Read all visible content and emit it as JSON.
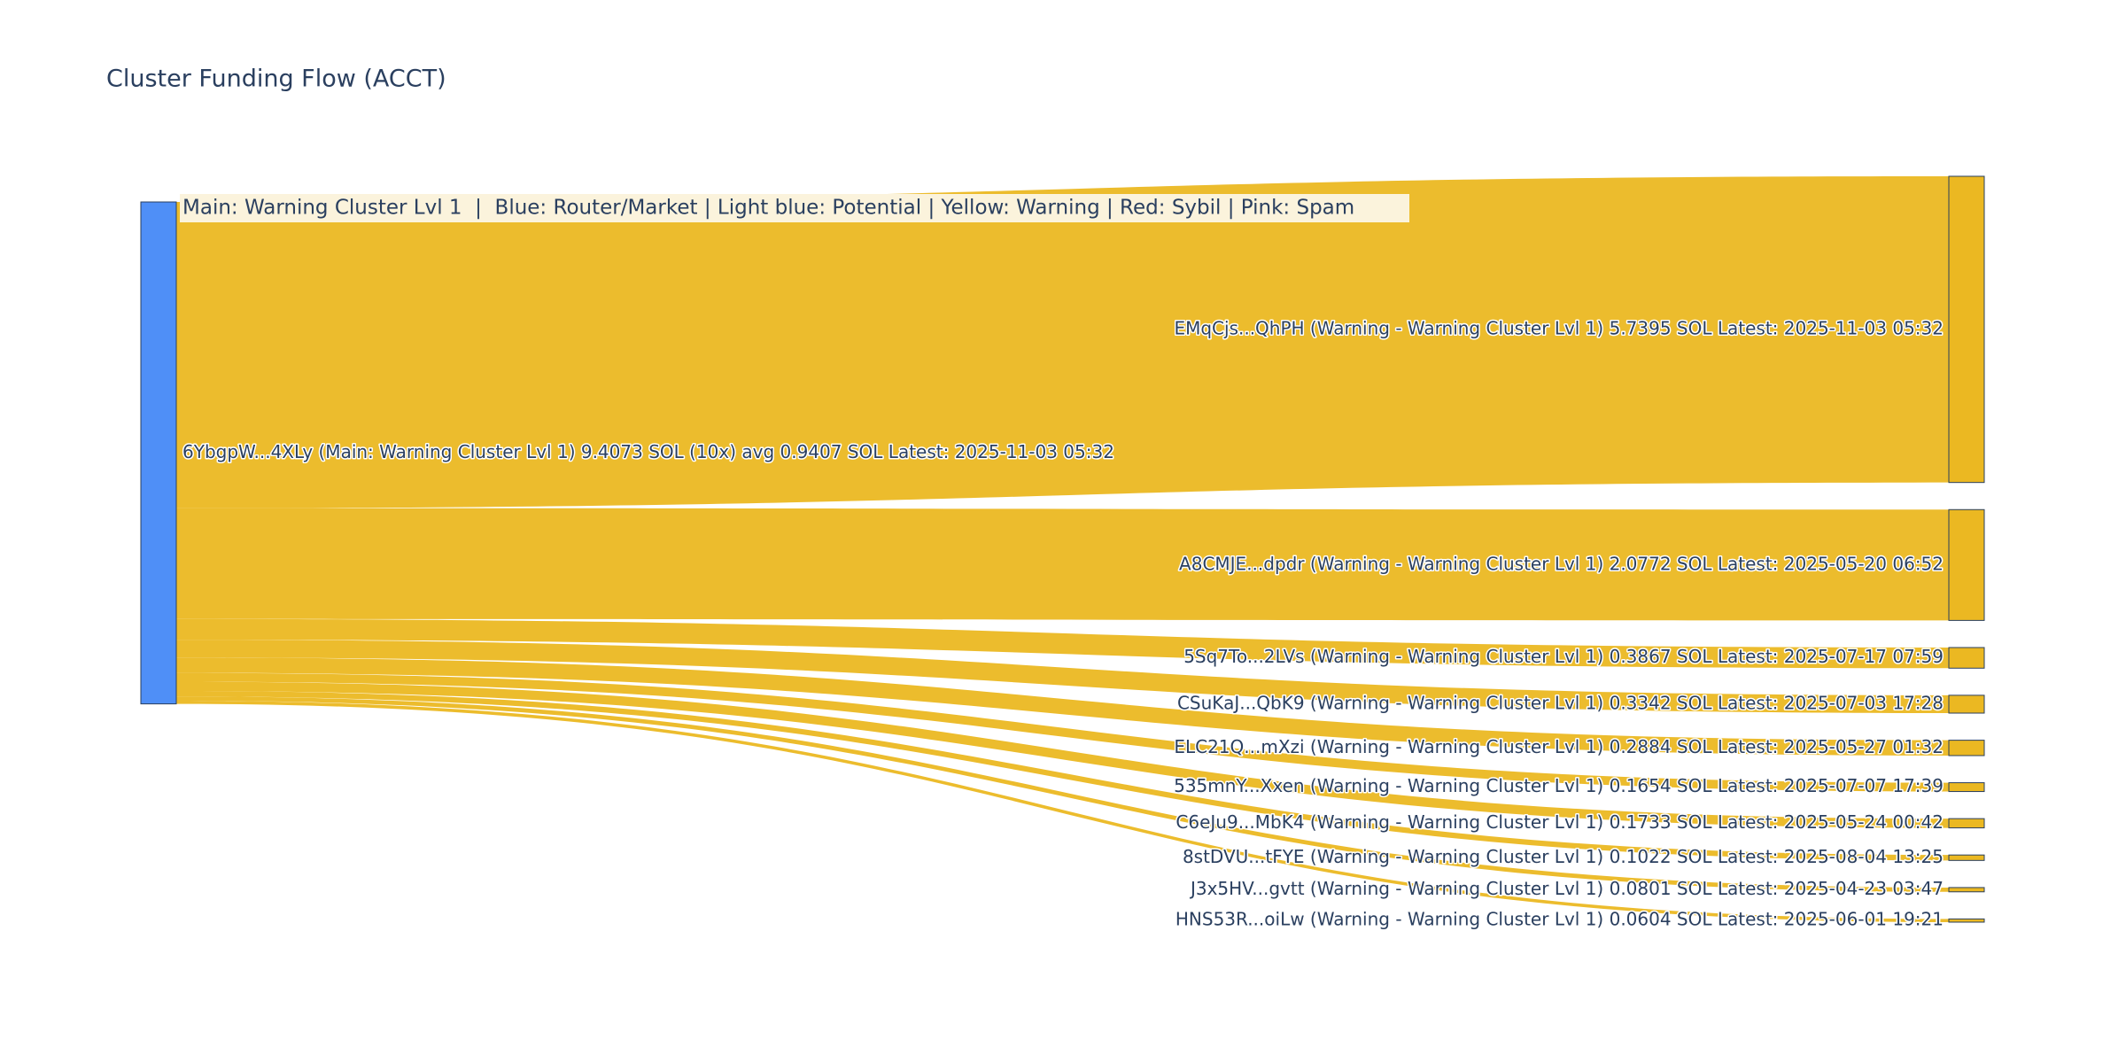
{
  "chart_data": {
    "type": "sankey",
    "title": "Cluster Funding Flow (ACCT)",
    "annotation": "Main: Warning Cluster Lvl 1  |  Blue: Router/Market | Light blue: Potential | Yellow: Warning | Red: Sybil | Pink: Spam",
    "source": {
      "label": "6YbgpW...4XLy (Main: Warning Cluster Lvl 1) 9.4073 SOL (10x) avg 0.9407 SOL Latest: 2025-11-03 05:32",
      "color": "#4f8ff7"
    },
    "link_color": "#ebb822",
    "targets": [
      {
        "label": "EMqCjs...QhPH (Warning - Warning Cluster Lvl 1) 5.7395 SOL Latest: 2025-11-03 05:32",
        "value": 5.7395,
        "color": "#ebb822"
      },
      {
        "label": "A8CMJE...dpdr (Warning - Warning Cluster Lvl 1) 2.0772 SOL Latest: 2025-05-20 06:52",
        "value": 2.0772,
        "color": "#ebb822"
      },
      {
        "label": "5Sq7To...2LVs (Warning - Warning Cluster Lvl 1) 0.3867 SOL Latest: 2025-07-17 07:59",
        "value": 0.3867,
        "color": "#ebb822"
      },
      {
        "label": "CSuKaJ...QbK9 (Warning - Warning Cluster Lvl 1) 0.3342 SOL Latest: 2025-07-03 17:28",
        "value": 0.3342,
        "color": "#ebb822"
      },
      {
        "label": "ELC21Q...mXzi (Warning - Warning Cluster Lvl 1) 0.2884 SOL Latest: 2025-05-27 01:32",
        "value": 0.2884,
        "color": "#ebb822"
      },
      {
        "label": "535mnY...Xxen (Warning - Warning Cluster Lvl 1) 0.1654 SOL Latest: 2025-07-07 17:39",
        "value": 0.1654,
        "color": "#ebb822"
      },
      {
        "label": "C6eJu9...MbK4 (Warning - Warning Cluster Lvl 1) 0.1733 SOL Latest: 2025-05-24 00:42",
        "value": 0.1733,
        "color": "#ebb822"
      },
      {
        "label": "8stDVU...tFYE (Warning - Warning Cluster Lvl 1) 0.1022 SOL Latest: 2025-08-04 13:25",
        "value": 0.1022,
        "color": "#ebb822"
      },
      {
        "label": "J3x5HV...gvtt (Warning - Warning Cluster Lvl 1) 0.0801 SOL Latest: 2025-04-23 03:47",
        "value": 0.0801,
        "color": "#ebb822"
      },
      {
        "label": "HNS53R...oiLw (Warning - Warning Cluster Lvl 1) 0.0604 SOL Latest: 2025-06-01 19:21",
        "value": 0.0604,
        "color": "#ebb822"
      }
    ]
  }
}
